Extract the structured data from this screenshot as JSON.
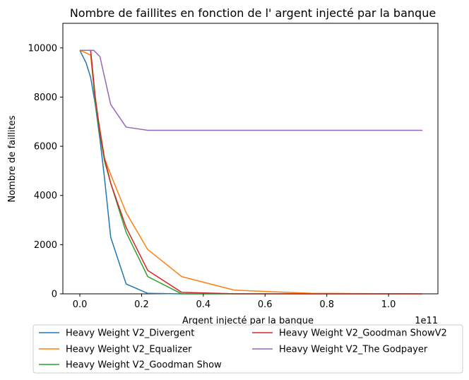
{
  "chart_data": {
    "type": "line",
    "title": "Nombre de faillites en fonction de l' argent injecté par la banque",
    "xlabel": "Argent injecté par la banque",
    "ylabel": "Nombre de faillites",
    "x_offset_label": "1e11",
    "xlim": [
      -0.055,
      1.16
    ],
    "ylim": [
      0,
      11000
    ],
    "xticks": [
      0.0,
      0.2,
      0.4,
      0.6,
      0.8,
      1.0
    ],
    "xtick_labels": [
      "0.0",
      "0.2",
      "0.4",
      "0.6",
      "0.8",
      "1.0"
    ],
    "yticks": [
      0,
      2000,
      4000,
      6000,
      8000,
      10000
    ],
    "ytick_labels": [
      "0",
      "2000",
      "4000",
      "6000",
      "8000",
      "10000"
    ],
    "grid": false,
    "legend_placement": "below",
    "series": [
      {
        "name": "Heavy Weight V2_Divergent",
        "color": "#1f77b4",
        "x": [
          0.0,
          0.02,
          0.035,
          0.05,
          0.065,
          0.08,
          0.1,
          0.15,
          0.22,
          0.33,
          0.5,
          0.75,
          1.11
        ],
        "y": [
          9900,
          9400,
          8800,
          7700,
          6300,
          4700,
          2300,
          400,
          20,
          0,
          0,
          0,
          0
        ]
      },
      {
        "name": "Heavy Weight V2_Equalizer",
        "color": "#ff7f0e",
        "x": [
          0.0,
          0.02,
          0.035,
          0.05,
          0.065,
          0.08,
          0.1,
          0.15,
          0.22,
          0.33,
          0.5,
          0.75,
          1.11
        ],
        "y": [
          9900,
          9800,
          9700,
          7800,
          6700,
          5500,
          4850,
          3300,
          1800,
          700,
          150,
          20,
          0
        ]
      },
      {
        "name": "Heavy Weight V2_Goodman Show",
        "color": "#2ca02c",
        "x": [
          0.0,
          0.02,
          0.035,
          0.05,
          0.065,
          0.08,
          0.1,
          0.15,
          0.22,
          0.33,
          0.5,
          0.75,
          1.11
        ],
        "y": [
          9900,
          9900,
          9900,
          7800,
          6500,
          5400,
          4500,
          2500,
          700,
          0,
          0,
          0,
          0
        ]
      },
      {
        "name": "Heavy Weight V2_Goodman ShowV2",
        "color": "#d62728",
        "x": [
          0.0,
          0.02,
          0.035,
          0.05,
          0.065,
          0.08,
          0.1,
          0.15,
          0.22,
          0.33,
          0.5,
          0.75,
          1.11
        ],
        "y": [
          9900,
          9900,
          9900,
          8000,
          6600,
          5500,
          4500,
          2700,
          950,
          60,
          5,
          0,
          0
        ]
      },
      {
        "name": "Heavy Weight V2_The Godpayer",
        "color": "#9467bd",
        "x": [
          0.0,
          0.02,
          0.035,
          0.045,
          0.065,
          0.1,
          0.15,
          0.22,
          0.33,
          0.5,
          0.75,
          1.11
        ],
        "y": [
          9900,
          9900,
          9900,
          9900,
          9650,
          7700,
          6780,
          6650,
          6650,
          6650,
          6650,
          6650
        ]
      }
    ]
  }
}
